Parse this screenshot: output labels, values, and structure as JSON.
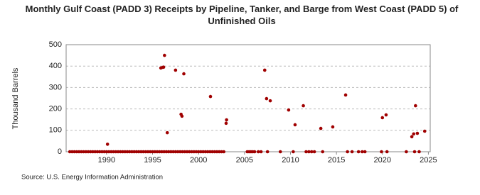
{
  "chart_data": {
    "type": "scatter",
    "title": "Monthly Gulf Coast (PADD 3) Receipts by Pipeline, Tanker, and Barge from West Coast (PADD 5) of Unfinished Oils",
    "y_label": "Thousand Barrels",
    "source": "Source: U.S. Energy Information Administration",
    "color": "#a00000",
    "grid": true,
    "xlim": [
      1985.6,
      2025.2
    ],
    "ylim": [
      0,
      500
    ],
    "xticks": [
      1990,
      1995,
      2000,
      2005,
      2010,
      2015,
      2020,
      2025
    ],
    "yticks": [
      0,
      100,
      200,
      300,
      400,
      500
    ],
    "x": [
      1986,
      1986.25,
      1986.5,
      1986.75,
      1987,
      1987.25,
      1987.5,
      1987.75,
      1988,
      1988.25,
      1988.5,
      1988.75,
      1989,
      1989.25,
      1989.5,
      1989.75,
      1990,
      1990.25,
      1990.5,
      1990.75,
      1991,
      1991.25,
      1991.5,
      1991.75,
      1992,
      1992.25,
      1992.5,
      1992.75,
      1993,
      1993.25,
      1993.5,
      1993.75,
      1994,
      1994.25,
      1994.5,
      1994.75,
      1995,
      1995.25,
      1995.5,
      1995.75,
      1996,
      1996.25,
      1996.5,
      1996.75,
      1997,
      1997.25,
      1997.5,
      1997.75,
      1998,
      1998.25,
      1998.5,
      1998.75,
      1999,
      1999.25,
      1999.5,
      1999.75,
      2000,
      2000.25,
      2000.5,
      2000.75,
      2001,
      2001.25,
      2001.5,
      2001.75,
      2002,
      2002.25,
      2002.5,
      2002.75,
      2005.3,
      2005.5,
      2005.7,
      2005.9,
      2006.1,
      2006.5,
      2006.8,
      2007.5,
      2008.9,
      2010.3,
      2011.7,
      2012.0,
      2012.3,
      2012.6,
      2013.5,
      2016.2,
      2016.7,
      2017.4,
      2017.8,
      2018.1,
      2019.9,
      2020.5,
      2022.6,
      2023.5,
      2024.0,
      1990.1,
      1995.9,
      1996.1,
      1996.2,
      1996.3,
      1996.6,
      1997.5,
      1998.1,
      1998.2,
      1998.4,
      2001.3,
      2003.0,
      2003.05,
      2007.2,
      2007.4,
      2007.8,
      2009.8,
      2010.5,
      2011.4,
      2013.3,
      2014.6,
      2016.0,
      2020.0,
      2020.4,
      2023.2,
      2023.4,
      2023.6,
      2023.8,
      2024.6
    ],
    "values": [
      0,
      0,
      0,
      0,
      0,
      0,
      0,
      0,
      0,
      0,
      0,
      0,
      0,
      0,
      0,
      0,
      0,
      0,
      0,
      0,
      0,
      0,
      0,
      0,
      0,
      0,
      0,
      0,
      0,
      0,
      0,
      0,
      0,
      0,
      0,
      0,
      0,
      0,
      0,
      0,
      0,
      0,
      0,
      0,
      0,
      0,
      0,
      0,
      0,
      0,
      0,
      0,
      0,
      0,
      0,
      0,
      0,
      0,
      0,
      0,
      0,
      0,
      0,
      0,
      0,
      0,
      0,
      0,
      0,
      0,
      0,
      0,
      0,
      0,
      0,
      0,
      0,
      0,
      0,
      0,
      0,
      0,
      0,
      0,
      0,
      0,
      0,
      0,
      0,
      0,
      0,
      0,
      0,
      35,
      391,
      394,
      395,
      450,
      89,
      381,
      175,
      166,
      364,
      258,
      133,
      149,
      381,
      248,
      238,
      195,
      126,
      215,
      109,
      116,
      265,
      159,
      172,
      70,
      83,
      215,
      86,
      96
    ]
  }
}
